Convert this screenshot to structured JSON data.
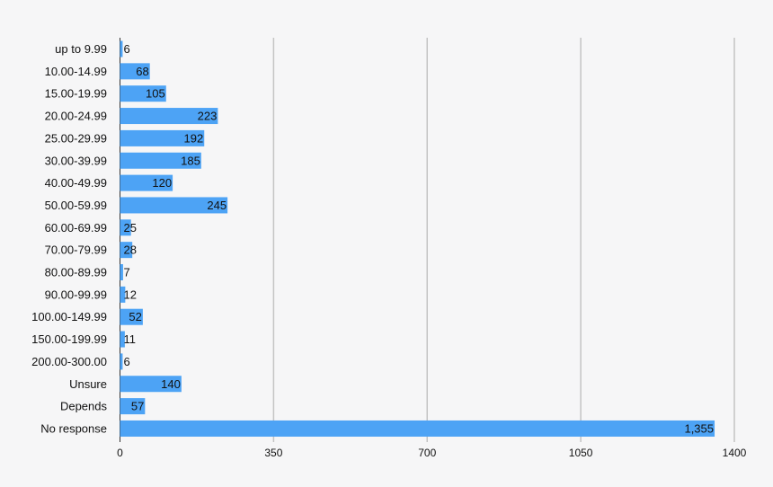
{
  "chart_data": {
    "type": "bar",
    "orientation": "horizontal",
    "title": "",
    "xlabel": "",
    "ylabel": "",
    "categories": [
      "up to 9.99",
      "10.00-14.99",
      "15.00-19.99",
      "20.00-24.99",
      "25.00-29.99",
      "30.00-39.99",
      "40.00-49.99",
      "50.00-59.99",
      "60.00-69.99",
      "70.00-79.99",
      "80.00-89.99",
      "90.00-99.99",
      "100.00-149.99",
      "150.00-199.99",
      "200.00-300.00",
      "Unsure",
      "Depends",
      "No response"
    ],
    "values": [
      6,
      68,
      105,
      223,
      192,
      185,
      120,
      245,
      25,
      28,
      7,
      12,
      52,
      11,
      6,
      140,
      57,
      1355
    ],
    "value_labels": [
      "6",
      "68",
      "105",
      "223",
      "192",
      "185",
      "120",
      "245",
      "25",
      "28",
      "7",
      "12",
      "52",
      "11",
      "6",
      "140",
      "57",
      "1,355"
    ],
    "xlim": [
      0,
      1400
    ],
    "x_ticks": [
      0,
      350,
      700,
      1050,
      1400
    ],
    "x_tick_labels": [
      "0",
      "350",
      "700",
      "1050",
      "1400"
    ],
    "grid": "vertical",
    "legend": "none",
    "bar_color": "#4da3f5",
    "background": "#f6f6f7"
  }
}
